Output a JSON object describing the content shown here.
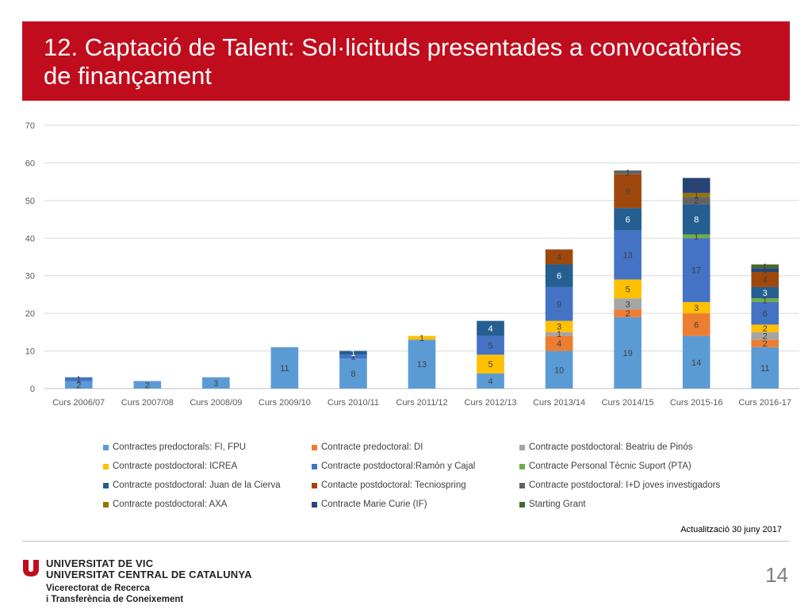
{
  "title": "12. Captació de Talent: Sol·licituds presentades a convocatòries de finançament",
  "updated": "Actualització 30 juny 2017",
  "page_number": "14",
  "university": {
    "line1": "UNIVERSITAT DE VIC",
    "line2": "UNIVERSITAT CENTRAL DE CATALUNYA",
    "vice1": "Vicerectorat de Recerca",
    "vice2": "i Transferència de Coneixement"
  },
  "logo": {
    "icon": "university-logo-icon",
    "color": "#c00d1e"
  },
  "chart_data": {
    "type": "bar",
    "stacked": true,
    "title": "",
    "xlabel": "",
    "ylabel": "",
    "ylim": [
      0,
      70
    ],
    "yticks": [
      0,
      10,
      20,
      30,
      40,
      50,
      60,
      70
    ],
    "grid": true,
    "legend_position": "bottom",
    "categories": [
      "Curs 2006/07",
      "Curs 2007/08",
      "Curs 2008/09",
      "Curs 2009/10",
      "Curs 2010/11",
      "Curs 2011/12",
      "Curs 2012/13",
      "Curs 2013/14",
      "Curs 2014/15",
      "Curs 2015-16",
      "Curs 2016-17"
    ],
    "series": [
      {
        "name": "Contractes predoctorals: FI, FPU",
        "color": "#5b9bd5",
        "label_color": "#404040",
        "values": [
          2,
          2,
          3,
          11,
          8,
          13,
          4,
          10,
          19,
          14,
          11
        ]
      },
      {
        "name": "Contracte predoctoral: DI",
        "color": "#ed7d31",
        "label_color": "#404040",
        "values": [
          0,
          0,
          0,
          0,
          0,
          0,
          0,
          4,
          2,
          6,
          2
        ]
      },
      {
        "name": "Contracte postdoctoral: Beatriu de Pinós",
        "color": "#a5a5a5",
        "label_color": "#404040",
        "values": [
          0,
          0,
          0,
          0,
          0,
          0,
          0,
          1,
          3,
          0,
          2
        ]
      },
      {
        "name": "Contracte postdoctoral: ICREA",
        "color": "#ffc000",
        "label_color": "#404040",
        "values": [
          0,
          0,
          0,
          0,
          0,
          1,
          5,
          3,
          5,
          3,
          2
        ]
      },
      {
        "name": "Contracte postdoctoral:Ramón y Cajal",
        "color": "#4472c4",
        "label_color": "#404040",
        "values": [
          1,
          0,
          0,
          0,
          1,
          0,
          5,
          9,
          13,
          17,
          6
        ]
      },
      {
        "name": "Contracte Personal Tècnic Suport (PTA)",
        "color": "#70ad47",
        "label_color": "#404040",
        "values": [
          0,
          0,
          0,
          0,
          0,
          0,
          0,
          0,
          0,
          1,
          1
        ]
      },
      {
        "name": "Contracte postdoctoral: Juan de la Cierva",
        "color": "#255e91",
        "label_color": "#ffffff",
        "values": [
          0,
          0,
          0,
          0,
          1,
          0,
          4,
          6,
          6,
          8,
          3
        ]
      },
      {
        "name": "Contacte postdoctoral: Tecniospring",
        "color": "#9e480e",
        "label_color": "#404040",
        "values": [
          0,
          0,
          0,
          0,
          0,
          0,
          0,
          4,
          9,
          0,
          4
        ]
      },
      {
        "name": "Contracte postdoctoral: I+D joves investigadors",
        "color": "#636363",
        "label_color": "#404040",
        "values": [
          0,
          0,
          0,
          0,
          0,
          0,
          0,
          0,
          1,
          2,
          0
        ]
      },
      {
        "name": "Contracte postdoctoral: AXA",
        "color": "#997300",
        "label_color": "#404040",
        "values": [
          0,
          0,
          0,
          0,
          0,
          0,
          0,
          0,
          0,
          1,
          0
        ]
      },
      {
        "name": "Contracte Marie Curie (IF)",
        "color": "#264478",
        "label_color": "#404040",
        "values": [
          0,
          0,
          0,
          0,
          0,
          0,
          0,
          0,
          0,
          4,
          1
        ]
      },
      {
        "name": "Starting Grant",
        "color": "#43682b",
        "label_color": "#404040",
        "values": [
          0,
          0,
          0,
          0,
          0,
          0,
          0,
          0,
          0,
          0,
          1
        ]
      }
    ]
  }
}
